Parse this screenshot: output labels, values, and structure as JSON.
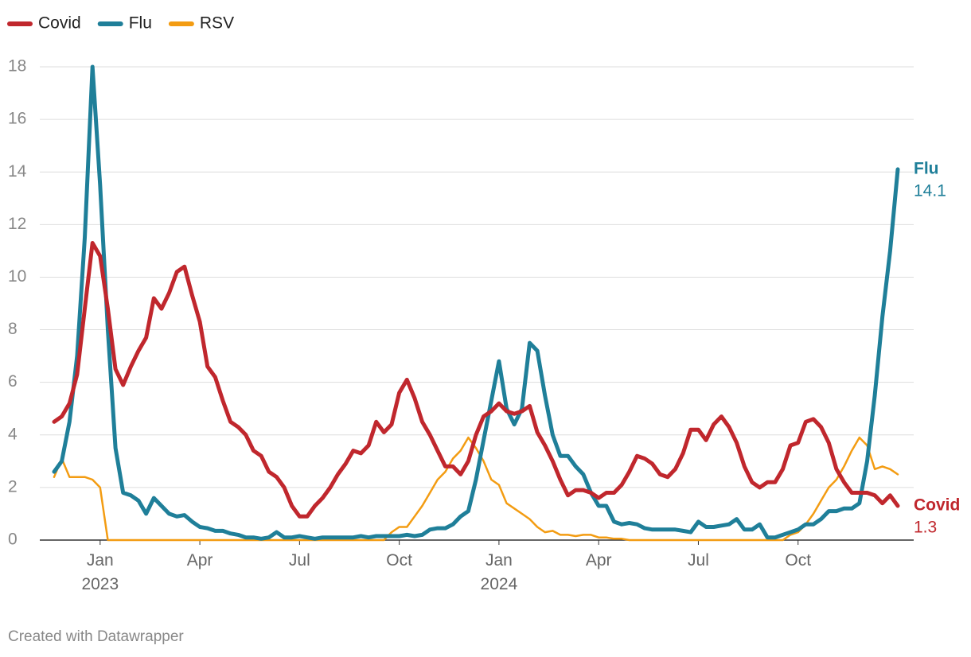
{
  "chart_data": {
    "type": "line",
    "credit": "Created with Datawrapper",
    "categories": [
      null,
      null,
      null,
      null,
      null,
      null,
      "Jan\n2023",
      null,
      null,
      null,
      null,
      null,
      null,
      null,
      null,
      null,
      null,
      null,
      null,
      "Apr",
      null,
      null,
      null,
      null,
      null,
      null,
      null,
      null,
      null,
      null,
      null,
      null,
      "Jul",
      null,
      null,
      null,
      null,
      null,
      null,
      null,
      null,
      null,
      null,
      null,
      null,
      "Oct",
      null,
      null,
      null,
      null,
      null,
      null,
      null,
      null,
      null,
      null,
      null,
      null,
      "Jan\n2024",
      null,
      null,
      null,
      null,
      null,
      null,
      null,
      null,
      null,
      null,
      null,
      null,
      "Apr",
      null,
      null,
      null,
      null,
      null,
      null,
      null,
      null,
      null,
      null,
      null,
      null,
      "Jul",
      null,
      null,
      null,
      null,
      null,
      null,
      null,
      null,
      null,
      null,
      null,
      null,
      "Oct",
      null,
      null,
      null,
      null,
      null,
      null,
      null,
      null,
      null,
      null,
      null,
      null,
      null
    ],
    "series": [
      {
        "name": "Covid",
        "color": "#c0272d",
        "width": 5,
        "end_label": true,
        "values": [
          4.5,
          4.7,
          5.2,
          6.3,
          8.8,
          11.3,
          10.8,
          8.8,
          6.5,
          5.9,
          6.6,
          7.2,
          7.7,
          9.2,
          8.8,
          9.4,
          10.2,
          10.4,
          9.3,
          8.3,
          6.6,
          6.2,
          5.3,
          4.5,
          4.3,
          4.0,
          3.4,
          3.2,
          2.6,
          2.4,
          2.0,
          1.3,
          0.9,
          0.9,
          1.3,
          1.6,
          2.0,
          2.5,
          2.9,
          3.4,
          3.3,
          3.6,
          4.5,
          4.1,
          4.4,
          5.6,
          6.1,
          5.4,
          4.5,
          4.0,
          3.4,
          2.8,
          2.8,
          2.5,
          3.0,
          4.0,
          4.7,
          4.9,
          5.2,
          4.9,
          4.8,
          4.9,
          5.1,
          4.1,
          3.6,
          3.0,
          2.3,
          1.7,
          1.9,
          1.9,
          1.8,
          1.6,
          1.8,
          1.8,
          2.1,
          2.6,
          3.2,
          3.1,
          2.9,
          2.5,
          2.4,
          2.7,
          3.3,
          4.2,
          4.2,
          3.8,
          4.4,
          4.7,
          4.3,
          3.7,
          2.8,
          2.2,
          2.0,
          2.2,
          2.2,
          2.7,
          3.6,
          3.7,
          4.5,
          4.6,
          4.3,
          3.7,
          2.7,
          2.2,
          1.8,
          1.8,
          1.8,
          1.7,
          1.4,
          1.7,
          1.3
        ]
      },
      {
        "name": "Flu",
        "color": "#1f7f99",
        "width": 5,
        "end_label": true,
        "values": [
          2.6,
          3.0,
          4.5,
          7.0,
          11.5,
          18.0,
          13.5,
          8.0,
          3.5,
          1.8,
          1.7,
          1.5,
          1.0,
          1.6,
          1.3,
          1.0,
          0.9,
          0.95,
          0.7,
          0.5,
          0.45,
          0.35,
          0.35,
          0.25,
          0.2,
          0.1,
          0.1,
          0.05,
          0.1,
          0.3,
          0.1,
          0.1,
          0.15,
          0.1,
          0.05,
          0.1,
          0.1,
          0.1,
          0.1,
          0.1,
          0.15,
          0.1,
          0.15,
          0.15,
          0.15,
          0.15,
          0.2,
          0.15,
          0.2,
          0.4,
          0.45,
          0.45,
          0.6,
          0.9,
          1.1,
          2.3,
          3.8,
          5.3,
          6.8,
          5.0,
          4.4,
          5.0,
          7.5,
          7.2,
          5.5,
          4.0,
          3.2,
          3.2,
          2.8,
          2.5,
          1.8,
          1.3,
          1.3,
          0.7,
          0.6,
          0.65,
          0.6,
          0.45,
          0.4,
          0.4,
          0.4,
          0.4,
          0.35,
          0.3,
          0.7,
          0.5,
          0.5,
          0.55,
          0.6,
          0.8,
          0.4,
          0.4,
          0.6,
          0.1,
          0.1,
          0.2,
          0.3,
          0.4,
          0.6,
          0.6,
          0.8,
          1.1,
          1.1,
          1.2,
          1.2,
          1.4,
          3.0,
          5.5,
          8.5,
          11.0,
          14.1
        ]
      },
      {
        "name": "RSV",
        "color": "#f39c12",
        "width": 2.5,
        "end_label": false,
        "values": [
          2.4,
          3.1,
          2.4,
          2.4,
          2.4,
          2.3,
          2.0,
          0,
          0,
          0,
          0,
          0,
          0,
          0,
          0,
          0,
          0,
          0,
          0,
          0,
          0,
          0,
          0,
          0,
          0,
          0,
          0,
          0,
          0,
          0,
          0,
          0,
          0,
          0,
          0,
          0,
          0,
          0,
          0,
          0,
          0,
          0,
          0,
          0,
          0.3,
          0.5,
          0.5,
          0.9,
          1.3,
          1.8,
          2.3,
          2.6,
          3.1,
          3.4,
          3.9,
          3.5,
          3.0,
          2.3,
          2.1,
          1.4,
          1.2,
          1.0,
          0.8,
          0.5,
          0.3,
          0.35,
          0.2,
          0.2,
          0.15,
          0.2,
          0.2,
          0.1,
          0.1,
          0.05,
          0.05,
          0,
          0,
          0,
          0,
          0,
          0,
          0,
          0,
          0,
          0,
          0,
          0,
          0,
          0,
          0,
          0,
          0,
          0,
          0,
          0,
          0,
          0.2,
          0.3,
          0.6,
          1.0,
          1.5,
          2.0,
          2.3,
          2.8,
          3.4,
          3.9,
          3.6,
          2.7,
          2.8,
          2.7,
          2.5
        ]
      }
    ],
    "ylim": [
      0,
      18
    ],
    "yticks": [
      0,
      2,
      4,
      6,
      8,
      10,
      12,
      14,
      16,
      18
    ],
    "grid": true,
    "legend": "top-left"
  }
}
